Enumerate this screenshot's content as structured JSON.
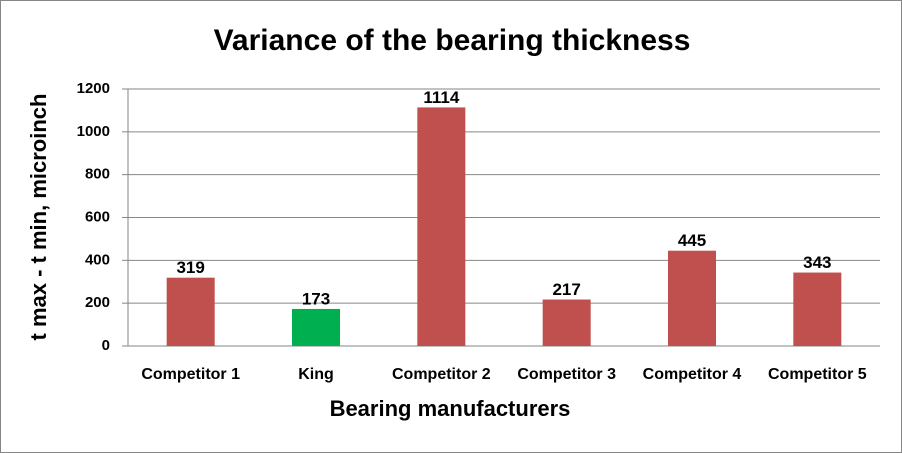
{
  "chart_data": {
    "type": "bar",
    "title": "Variance of the bearing thickness",
    "x_label": "Bearing manufacturers",
    "y_label": "t max - t min, microinch",
    "categories": [
      "Competitor 1",
      "King",
      "Competitor 2",
      "Competitor 3",
      "Competitor 4",
      "Competitor 5"
    ],
    "values": [
      319,
      173,
      1114,
      217,
      445,
      343
    ],
    "colors": [
      "#c0504d",
      "#00b050",
      "#c0504d",
      "#c0504d",
      "#c0504d",
      "#c0504d"
    ],
    "ylim": [
      0,
      1200
    ],
    "yticks": [
      0,
      200,
      400,
      600,
      800,
      1000,
      1200
    ],
    "grid": true
  }
}
